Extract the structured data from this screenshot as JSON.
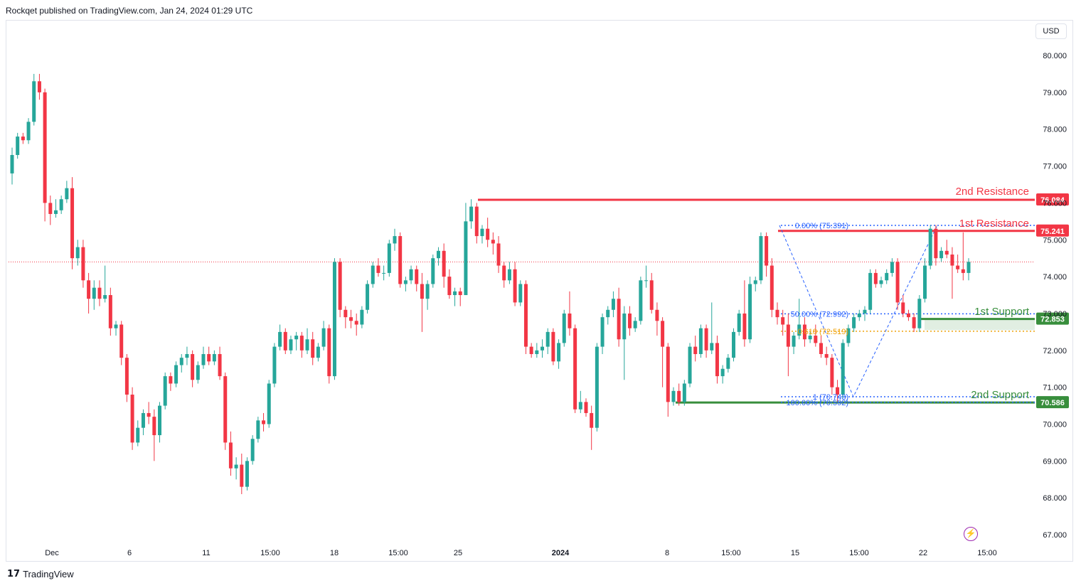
{
  "header": {
    "published_text": "Rockqet published on TradingView.com, Jan 24, 2024 01:29 UTC"
  },
  "toolbar": {
    "currency": "USD"
  },
  "footer": {
    "brand": "TradingView",
    "logo_mark": "17"
  },
  "icons": {
    "lightning": "lightning-icon"
  },
  "colors": {
    "up": "#26a69a",
    "down": "#f23645",
    "resistance": "#f23645",
    "support": "#388e3c",
    "fib_blue": "#2962ff",
    "fib_orange": "#f0a30a",
    "price_line": "#f23645",
    "grid_text": "#131722"
  },
  "chart_data": {
    "type": "candlestick",
    "y_axis": {
      "ylim": [
        66.6,
        80.6
      ],
      "ticks": [
        "80.000",
        "79.000",
        "78.000",
        "77.000",
        "76.000",
        "75.000",
        "74.000",
        "73.000",
        "72.000",
        "71.000",
        "70.000",
        "69.000",
        "68.000",
        "67.000"
      ]
    },
    "x_axis": {
      "ticks": [
        "Dec",
        "6",
        "11",
        "15:00",
        "18",
        "15:00",
        "25",
        "2024",
        "8",
        "15:00",
        "15",
        "15:00",
        "22",
        "15:00"
      ]
    },
    "current_price": 74.4,
    "levels": [
      {
        "label": "2nd Resistance",
        "value": 76.084,
        "badge": "76.084",
        "type": "resistance"
      },
      {
        "label": "1st Resistance",
        "value": 75.241,
        "badge": "75.241",
        "type": "resistance"
      },
      {
        "label": "1st Support",
        "value": 72.853,
        "badge": "72.853",
        "type": "support"
      },
      {
        "label": "2nd Support",
        "value": 70.586,
        "badge": "70.586",
        "type": "support"
      }
    ],
    "fibonacci": [
      {
        "label": "0.00% (75.391)",
        "value": 75.391
      },
      {
        "label": "50.00% (72.992)",
        "value": 72.992
      },
      {
        "label": "0.618 (72.519)",
        "value": 72.519
      },
      {
        "label": "1 (70.743)",
        "value": 70.743
      },
      {
        "label": "100.00% (70.592)",
        "value": 70.592
      }
    ],
    "candles": [
      [
        76.8,
        77.5,
        76.5,
        77.3
      ],
      [
        77.3,
        77.9,
        77.2,
        77.8
      ],
      [
        77.8,
        77.9,
        77.6,
        77.7
      ],
      [
        77.7,
        78.3,
        77.6,
        78.2
      ],
      [
        78.2,
        79.5,
        78.1,
        79.3
      ],
      [
        79.3,
        79.5,
        78.8,
        79.0
      ],
      [
        79.0,
        79.1,
        75.5,
        76.0
      ],
      [
        76.0,
        76.2,
        75.4,
        75.7
      ],
      [
        75.7,
        76.1,
        75.6,
        75.8
      ],
      [
        75.8,
        76.2,
        75.7,
        76.1
      ],
      [
        76.1,
        76.6,
        76.0,
        76.4
      ],
      [
        76.4,
        76.7,
        74.2,
        74.5
      ],
      [
        74.5,
        75.0,
        74.3,
        74.8
      ],
      [
        74.8,
        75.0,
        73.7,
        73.9
      ],
      [
        73.9,
        74.1,
        73.0,
        73.4
      ],
      [
        73.4,
        73.9,
        73.1,
        73.7
      ],
      [
        73.7,
        73.9,
        73.2,
        73.4
      ],
      [
        73.4,
        74.3,
        73.3,
        73.5
      ],
      [
        73.5,
        73.7,
        72.4,
        72.6
      ],
      [
        72.6,
        72.8,
        72.4,
        72.7
      ],
      [
        72.7,
        72.8,
        71.6,
        71.8
      ],
      [
        71.8,
        71.9,
        70.6,
        70.8
      ],
      [
        70.8,
        71.0,
        69.3,
        69.5
      ],
      [
        69.5,
        70.1,
        69.4,
        69.9
      ],
      [
        69.9,
        70.4,
        69.7,
        70.3
      ],
      [
        70.3,
        70.6,
        70.0,
        70.2
      ],
      [
        70.2,
        70.4,
        69.0,
        69.7
      ],
      [
        69.7,
        70.6,
        69.5,
        70.5
      ],
      [
        70.5,
        71.4,
        70.4,
        71.3
      ],
      [
        71.3,
        71.4,
        70.9,
        71.1
      ],
      [
        71.1,
        71.7,
        71.0,
        71.6
      ],
      [
        71.6,
        71.9,
        71.4,
        71.8
      ],
      [
        71.8,
        72.1,
        71.6,
        71.9
      ],
      [
        71.9,
        72.0,
        71.0,
        71.2
      ],
      [
        71.2,
        71.7,
        71.1,
        71.6
      ],
      [
        71.6,
        72.1,
        71.5,
        71.9
      ],
      [
        71.9,
        72.1,
        71.6,
        71.7
      ],
      [
        71.7,
        72.0,
        71.6,
        71.9
      ],
      [
        71.9,
        72.1,
        71.2,
        71.3
      ],
      [
        71.3,
        71.4,
        69.3,
        69.5
      ],
      [
        69.5,
        69.8,
        68.6,
        68.8
      ],
      [
        68.8,
        69.1,
        68.5,
        68.9
      ],
      [
        68.9,
        69.2,
        68.1,
        68.3
      ],
      [
        68.3,
        69.1,
        68.2,
        69.0
      ],
      [
        69.0,
        69.7,
        68.9,
        69.6
      ],
      [
        69.6,
        70.2,
        69.5,
        70.1
      ],
      [
        70.1,
        70.3,
        69.8,
        70.0
      ],
      [
        70.0,
        71.2,
        69.9,
        71.1
      ],
      [
        71.1,
        72.2,
        71.0,
        72.1
      ],
      [
        72.1,
        72.7,
        72.0,
        72.5
      ],
      [
        72.5,
        72.6,
        71.9,
        72.0
      ],
      [
        72.0,
        72.4,
        71.9,
        72.3
      ],
      [
        72.3,
        72.5,
        72.0,
        72.4
      ],
      [
        72.4,
        72.5,
        71.8,
        72.0
      ],
      [
        72.0,
        72.6,
        71.9,
        72.3
      ],
      [
        72.3,
        72.5,
        71.6,
        71.8
      ],
      [
        71.8,
        72.2,
        71.7,
        72.1
      ],
      [
        72.1,
        72.8,
        72.0,
        72.6
      ],
      [
        72.6,
        72.7,
        71.1,
        71.3
      ],
      [
        71.3,
        74.5,
        71.2,
        74.4
      ],
      [
        74.4,
        74.5,
        72.9,
        73.1
      ],
      [
        73.1,
        73.2,
        72.6,
        72.9
      ],
      [
        72.9,
        73.1,
        72.6,
        72.8
      ],
      [
        72.8,
        73.0,
        72.4,
        72.7
      ],
      [
        72.7,
        73.2,
        72.6,
        73.1
      ],
      [
        73.1,
        73.9,
        73.0,
        73.8
      ],
      [
        73.8,
        74.4,
        73.7,
        74.3
      ],
      [
        74.3,
        74.5,
        74.0,
        74.1
      ],
      [
        74.1,
        74.3,
        73.9,
        74.1
      ],
      [
        74.1,
        75.0,
        74.0,
        74.9
      ],
      [
        74.9,
        75.3,
        74.7,
        75.1
      ],
      [
        75.1,
        75.2,
        73.7,
        73.8
      ],
      [
        73.8,
        74.0,
        73.6,
        73.9
      ],
      [
        73.9,
        74.3,
        73.8,
        74.2
      ],
      [
        74.2,
        74.3,
        73.6,
        73.8
      ],
      [
        73.8,
        74.1,
        72.5,
        73.4
      ],
      [
        73.4,
        73.9,
        73.1,
        73.8
      ],
      [
        73.8,
        74.6,
        73.7,
        74.5
      ],
      [
        74.5,
        74.8,
        74.3,
        74.7
      ],
      [
        74.7,
        74.9,
        73.7,
        74.0
      ],
      [
        74.0,
        74.2,
        73.4,
        73.5
      ],
      [
        73.5,
        73.7,
        73.2,
        73.6
      ],
      [
        73.6,
        73.7,
        73.2,
        73.5
      ],
      [
        73.5,
        76.0,
        73.5,
        75.5
      ],
      [
        75.5,
        76.1,
        75.3,
        75.9
      ],
      [
        75.9,
        76.0,
        74.9,
        75.1
      ],
      [
        75.1,
        75.4,
        74.9,
        75.3
      ],
      [
        75.3,
        75.6,
        74.8,
        75.0
      ],
      [
        75.0,
        75.2,
        74.6,
        74.9
      ],
      [
        74.9,
        75.1,
        74.1,
        74.3
      ],
      [
        74.3,
        74.4,
        73.7,
        73.9
      ],
      [
        73.9,
        74.4,
        73.8,
        74.2
      ],
      [
        74.2,
        74.4,
        73.2,
        73.3
      ],
      [
        73.3,
        73.9,
        73.2,
        73.8
      ],
      [
        73.8,
        73.9,
        71.9,
        72.1
      ],
      [
        72.1,
        72.2,
        71.8,
        71.9
      ],
      [
        71.9,
        72.2,
        71.8,
        72.0
      ],
      [
        72.0,
        72.3,
        71.8,
        72.1
      ],
      [
        72.1,
        72.6,
        71.9,
        72.5
      ],
      [
        72.5,
        72.6,
        71.6,
        71.7
      ],
      [
        71.7,
        72.3,
        71.5,
        72.2
      ],
      [
        72.2,
        73.1,
        72.1,
        73.0
      ],
      [
        73.0,
        73.6,
        72.4,
        72.6
      ],
      [
        72.6,
        72.7,
        70.3,
        70.4
      ],
      [
        70.4,
        70.9,
        70.3,
        70.6
      ],
      [
        70.6,
        70.7,
        70.2,
        70.3
      ],
      [
        70.3,
        70.5,
        69.3,
        69.9
      ],
      [
        69.9,
        72.2,
        69.8,
        72.1
      ],
      [
        72.1,
        73.0,
        71.9,
        72.9
      ],
      [
        72.9,
        73.2,
        72.7,
        73.1
      ],
      [
        73.1,
        73.6,
        72.9,
        73.4
      ],
      [
        73.4,
        73.7,
        72.1,
        72.3
      ],
      [
        72.3,
        73.2,
        71.2,
        73.0
      ],
      [
        73.0,
        73.2,
        72.4,
        72.6
      ],
      [
        72.6,
        72.9,
        72.5,
        72.8
      ],
      [
        72.8,
        74.0,
        72.7,
        73.9
      ],
      [
        73.9,
        74.3,
        73.7,
        73.9
      ],
      [
        73.9,
        74.1,
        73.0,
        73.1
      ],
      [
        73.1,
        73.3,
        72.4,
        72.8
      ],
      [
        72.8,
        72.9,
        71.0,
        72.1
      ],
      [
        72.1,
        72.2,
        70.2,
        70.6
      ],
      [
        70.6,
        71.0,
        70.5,
        70.9
      ],
      [
        70.9,
        71.1,
        70.5,
        70.6
      ],
      [
        70.6,
        71.2,
        70.5,
        71.1
      ],
      [
        71.1,
        72.2,
        71.0,
        72.1
      ],
      [
        72.1,
        72.4,
        71.7,
        71.9
      ],
      [
        71.9,
        72.7,
        71.8,
        72.6
      ],
      [
        72.6,
        72.7,
        71.8,
        72.0
      ],
      [
        72.0,
        73.3,
        71.9,
        72.2
      ],
      [
        72.2,
        72.4,
        71.1,
        71.3
      ],
      [
        71.3,
        71.6,
        71.1,
        71.5
      ],
      [
        71.5,
        71.9,
        71.4,
        71.8
      ],
      [
        71.8,
        72.6,
        71.7,
        72.5
      ],
      [
        72.5,
        73.1,
        72.4,
        73.0
      ],
      [
        73.0,
        73.9,
        72.1,
        72.3
      ],
      [
        72.3,
        74.0,
        72.2,
        73.8
      ],
      [
        73.8,
        74.0,
        73.6,
        73.9
      ],
      [
        73.9,
        75.2,
        73.8,
        75.1
      ],
      [
        75.1,
        75.2,
        74.0,
        74.3
      ],
      [
        74.3,
        74.5,
        72.9,
        73.1
      ],
      [
        73.1,
        73.3,
        72.7,
        72.9
      ],
      [
        72.9,
        73.1,
        72.4,
        72.7
      ],
      [
        72.7,
        73.0,
        71.3,
        72.1
      ],
      [
        72.1,
        72.5,
        71.9,
        72.4
      ],
      [
        72.4,
        73.4,
        72.3,
        72.7
      ],
      [
        72.7,
        72.9,
        72.1,
        72.3
      ],
      [
        72.3,
        72.5,
        72.2,
        72.4
      ],
      [
        72.4,
        72.7,
        72.1,
        72.2
      ],
      [
        72.2,
        72.4,
        71.8,
        71.9
      ],
      [
        71.9,
        72.1,
        71.6,
        71.8
      ],
      [
        71.8,
        71.9,
        70.8,
        71.0
      ],
      [
        71.0,
        71.2,
        70.6,
        70.8
      ],
      [
        70.8,
        72.3,
        70.7,
        72.2
      ],
      [
        72.2,
        72.7,
        72.1,
        72.6
      ],
      [
        72.6,
        73.0,
        72.5,
        72.9
      ],
      [
        72.9,
        73.1,
        72.8,
        73.0
      ],
      [
        73.0,
        73.2,
        72.8,
        73.1
      ],
      [
        73.1,
        74.2,
        73.0,
        74.1
      ],
      [
        74.1,
        74.2,
        73.7,
        73.8
      ],
      [
        73.8,
        74.0,
        73.7,
        73.9
      ],
      [
        73.9,
        74.2,
        73.8,
        74.1
      ],
      [
        74.1,
        74.5,
        74.0,
        74.4
      ],
      [
        74.4,
        74.5,
        73.1,
        73.3
      ],
      [
        73.3,
        73.5,
        72.9,
        73.0
      ],
      [
        73.0,
        73.1,
        72.8,
        72.9
      ],
      [
        72.9,
        73.0,
        72.5,
        72.6
      ],
      [
        72.6,
        73.5,
        72.5,
        73.4
      ],
      [
        73.4,
        74.5,
        73.3,
        74.3
      ],
      [
        74.3,
        75.4,
        74.2,
        75.3
      ],
      [
        75.3,
        75.4,
        74.3,
        74.5
      ],
      [
        74.5,
        74.8,
        74.4,
        74.7
      ],
      [
        74.7,
        75.0,
        74.5,
        74.6
      ],
      [
        74.6,
        74.8,
        73.4,
        74.3
      ],
      [
        74.3,
        74.6,
        74.1,
        74.2
      ],
      [
        74.2,
        75.2,
        73.9,
        74.1
      ],
      [
        74.1,
        74.5,
        73.9,
        74.4
      ]
    ]
  }
}
